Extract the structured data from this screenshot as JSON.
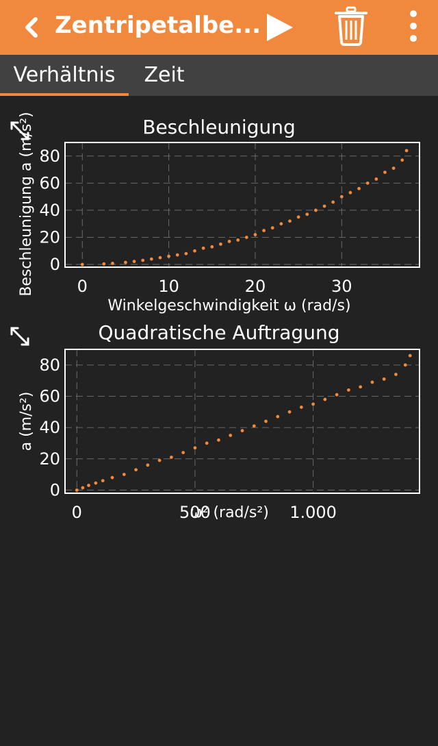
{
  "app_bar": {
    "title": "Zentripetalbe...",
    "background": "#f0883d",
    "icons": [
      "chevron-left-icon",
      "play-icon",
      "trash-icon",
      "more-vertical-icon"
    ]
  },
  "tabs": [
    {
      "label": "Verhältnis",
      "selected": true
    },
    {
      "label": "Zeit",
      "selected": false
    }
  ],
  "chart_data": [
    {
      "type": "scatter",
      "title": "Beschleunigung",
      "xlabel": "Winkelgeschwindigkeit ω (rad/s)",
      "ylabel": "Beschleunigung a (m/s²)",
      "xlim": [
        -2,
        39
      ],
      "ylim": [
        -2,
        90
      ],
      "xticks": [
        0,
        10,
        20,
        30
      ],
      "xtick_labels": [
        "0",
        "10",
        "20",
        "30"
      ],
      "yticks": [
        0,
        20,
        40,
        60,
        80
      ],
      "ytick_labels": [
        "0",
        "20",
        "40",
        "60",
        "80"
      ],
      "grid": true,
      "color": "#f0883d",
      "series": [
        {
          "x": [
            0,
            2.5,
            3.5,
            5,
            6,
            7,
            8,
            9,
            10,
            11,
            12,
            13,
            14,
            15,
            16,
            17,
            18,
            19,
            20,
            21,
            22,
            23,
            24,
            25,
            26,
            27,
            28,
            29,
            30,
            31,
            32,
            33,
            34,
            35,
            36,
            37,
            37.5
          ],
          "y": [
            0,
            0.4,
            0.8,
            1.5,
            2.2,
            3,
            4,
            5,
            6,
            7,
            8,
            10,
            12,
            13,
            15,
            17,
            18,
            20,
            22,
            25,
            27,
            30,
            32,
            35,
            37,
            40,
            43,
            46,
            50,
            53,
            56,
            60,
            63,
            68,
            71,
            77,
            84
          ]
        }
      ]
    },
    {
      "type": "scatter",
      "title": "Quadratische Auftragung",
      "xlabel": "ω² (rad/s²)",
      "ylabel": "a (m/s²)",
      "xlim": [
        -50,
        1450
      ],
      "ylim": [
        -2,
        90
      ],
      "xticks": [
        0,
        500,
        1000
      ],
      "xtick_labels": [
        "0",
        "500",
        "1.000"
      ],
      "yticks": [
        0,
        20,
        40,
        60,
        80
      ],
      "ytick_labels": [
        "0",
        "20",
        "40",
        "60",
        "80"
      ],
      "grid": true,
      "color": "#f0883d",
      "series": [
        {
          "x": [
            0,
            25,
            50,
            80,
            110,
            150,
            200,
            250,
            300,
            350,
            400,
            450,
            500,
            550,
            600,
            650,
            700,
            750,
            800,
            850,
            900,
            950,
            1000,
            1050,
            1100,
            1150,
            1200,
            1250,
            1300,
            1350,
            1390,
            1410
          ],
          "y": [
            0,
            1.5,
            3,
            4.5,
            6,
            8,
            10,
            13,
            16,
            19,
            21,
            24,
            27,
            30,
            32,
            35,
            38,
            41,
            44,
            47,
            50,
            53,
            55,
            58,
            61,
            64,
            66,
            69,
            71,
            74,
            80,
            86
          ]
        }
      ]
    }
  ]
}
